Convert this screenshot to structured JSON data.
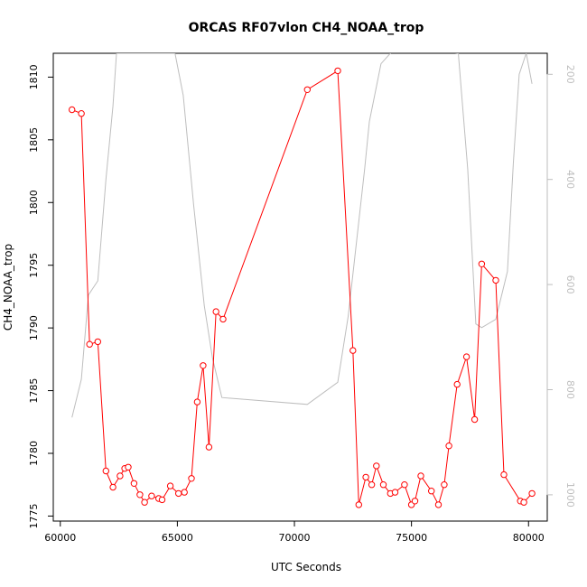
{
  "chart_data": {
    "type": "line",
    "title": "ORCAS RF07vlon CH4_NOAA_trop",
    "xlabel": "UTC Seconds",
    "ylabel": "CH4_NOAA_trop",
    "xlim": [
      59700,
      80800
    ],
    "ylim": [
      1774.6,
      1811.9
    ],
    "y2lim": [
      1050,
      160
    ],
    "x_ticks": [
      60000,
      65000,
      70000,
      75000,
      80000
    ],
    "y_ticks": [
      1775,
      1780,
      1785,
      1790,
      1795,
      1800,
      1805,
      1810
    ],
    "y2_ticks": [
      200,
      400,
      600,
      800,
      1000
    ],
    "grid": false,
    "series": [
      {
        "color": "#ff0000",
        "marker": "open-circle",
        "axis": "left",
        "points": [
          [
            60500,
            1807.4
          ],
          [
            60900,
            1807.1
          ],
          [
            61250,
            1788.7
          ],
          [
            61600,
            1788.9
          ],
          [
            61950,
            1778.6
          ],
          [
            62250,
            1777.3
          ],
          [
            62550,
            1778.2
          ],
          [
            62750,
            1778.8
          ],
          [
            62900,
            1778.9
          ],
          [
            63150,
            1777.6
          ],
          [
            63400,
            1776.7
          ],
          [
            63600,
            1776.1
          ],
          [
            63900,
            1776.6
          ],
          [
            64200,
            1776.4
          ],
          [
            64350,
            1776.3
          ],
          [
            64700,
            1777.4
          ],
          [
            65050,
            1776.8
          ],
          [
            65300,
            1776.9
          ],
          [
            65600,
            1778.0
          ],
          [
            65850,
            1784.1
          ],
          [
            66100,
            1787.0
          ],
          [
            66350,
            1780.5
          ],
          [
            66650,
            1791.3
          ],
          [
            66950,
            1790.7
          ],
          [
            70550,
            1809.0
          ],
          [
            71850,
            1810.5
          ],
          [
            72500,
            1788.2
          ],
          [
            72750,
            1775.9
          ],
          [
            73050,
            1778.1
          ],
          [
            73300,
            1777.5
          ],
          [
            73500,
            1779.0
          ],
          [
            73800,
            1777.5
          ],
          [
            74100,
            1776.8
          ],
          [
            74300,
            1776.9
          ],
          [
            74700,
            1777.5
          ],
          [
            75000,
            1775.9
          ],
          [
            75150,
            1776.2
          ],
          [
            75400,
            1778.2
          ],
          [
            75850,
            1777.0
          ],
          [
            76150,
            1775.9
          ],
          [
            76400,
            1777.5
          ],
          [
            76600,
            1780.6
          ],
          [
            76950,
            1785.5
          ],
          [
            77350,
            1787.7
          ],
          [
            77700,
            1782.7
          ],
          [
            78000,
            1795.1
          ],
          [
            78600,
            1793.8
          ],
          [
            78950,
            1778.3
          ],
          [
            79650,
            1776.2
          ],
          [
            79800,
            1776.1
          ],
          [
            80150,
            1776.8
          ]
        ]
      },
      {
        "color": "#bebebe",
        "marker": "none",
        "axis": "right",
        "points": [
          [
            60500,
            853
          ],
          [
            60900,
            780
          ],
          [
            61200,
            620
          ],
          [
            61600,
            593
          ],
          [
            61950,
            400
          ],
          [
            62250,
            260
          ],
          [
            62400,
            160
          ],
          [
            64900,
            160
          ],
          [
            65250,
            240
          ],
          [
            65700,
            450
          ],
          [
            66150,
            640
          ],
          [
            66500,
            740
          ],
          [
            66900,
            815
          ],
          [
            70550,
            828
          ],
          [
            71850,
            786
          ],
          [
            72300,
            660
          ],
          [
            72550,
            560
          ],
          [
            72800,
            460
          ],
          [
            73000,
            380
          ],
          [
            73200,
            290
          ],
          [
            73700,
            180
          ],
          [
            74400,
            145
          ],
          [
            77000,
            160
          ],
          [
            77400,
            380
          ],
          [
            77750,
            675
          ],
          [
            78000,
            682
          ],
          [
            78600,
            666
          ],
          [
            79100,
            575
          ],
          [
            79350,
            370
          ],
          [
            79600,
            200
          ],
          [
            79900,
            160
          ],
          [
            80150,
            218
          ]
        ]
      }
    ]
  }
}
